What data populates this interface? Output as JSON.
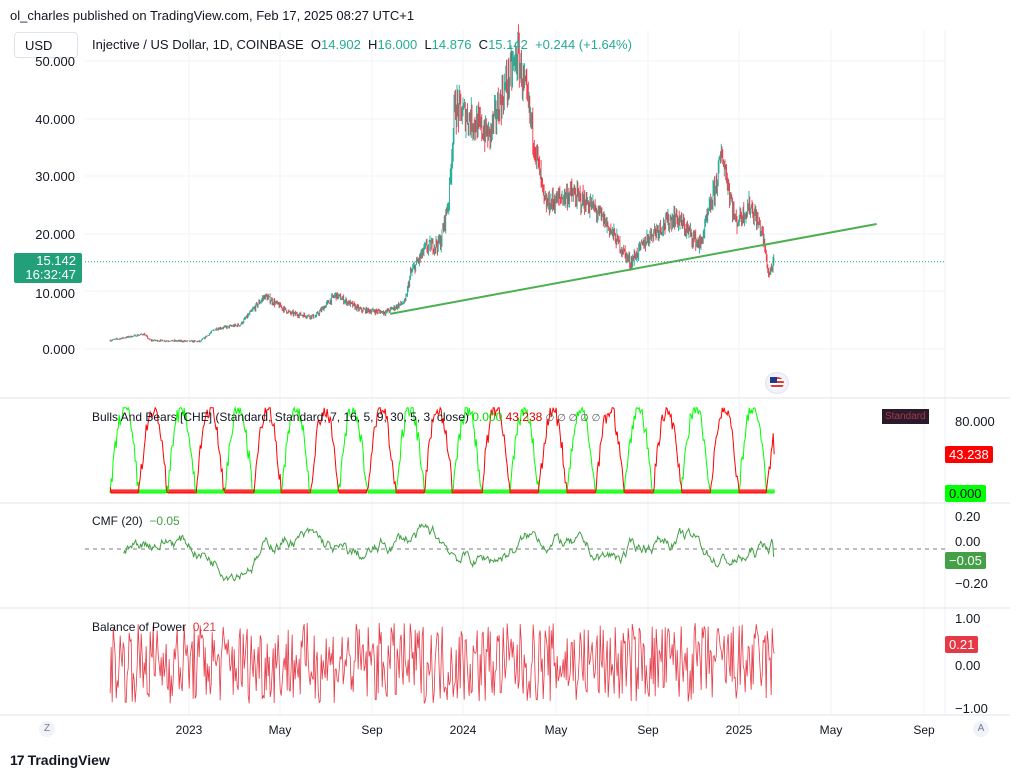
{
  "header": {
    "published": "ol_charles published on TradingView.com, Feb 17, 2025 08:27 UTC+1",
    "currency_button": "USD"
  },
  "legend": {
    "symbol": "Injective / US Dollar, 1D, COINBASE",
    "o_label": "O",
    "open": "14.902",
    "h_label": "H",
    "high": "16.000",
    "l_label": "L",
    "low": "14.876",
    "c_label": "C",
    "close": "15.142",
    "change": "+0.244 (+1.64%)"
  },
  "price_axis": {
    "labels": [
      "50.000",
      "40.000",
      "30.000",
      "20.000",
      "10.000",
      "0.000"
    ],
    "current_price": "15.142",
    "countdown": "16:32:47"
  },
  "indicators": {
    "bulls_bears": {
      "title": "Bulls And Bears [CHE] (Standard, Standard, 7, 16, 5, 9, 30, 5, 3, close)",
      "bull_value": "0.000",
      "bear_value": "43.238",
      "na_marks": [
        "∅",
        "∅",
        "∅",
        "∅",
        "∅"
      ],
      "tag": "Standard",
      "axis": [
        "80.000"
      ]
    },
    "cmf": {
      "title": "CMF (20)",
      "value": "−0.05",
      "axis": [
        "0.20",
        "0.00",
        "−0.20"
      ]
    },
    "bop": {
      "title": "Balance of Power",
      "value": "0.21",
      "axis": [
        "1.00",
        "0.00",
        "−1.00"
      ]
    }
  },
  "time_axis": {
    "labels": [
      "2023",
      "May",
      "Sep",
      "2024",
      "May",
      "Sep",
      "2025",
      "May",
      "Sep"
    ]
  },
  "buttons": {
    "z": "Z",
    "a": "A"
  },
  "footer": {
    "brand": "TradingView"
  },
  "colors": {
    "up": "#22ab94",
    "down": "#f23645",
    "trend": "#4caf50",
    "bull": "#00ff00",
    "bear": "#ff0000",
    "cmf": "#43a047",
    "bop": "#e53945"
  },
  "chart_data": {
    "type": "candlestick",
    "title": "Injective / US Dollar, 1D, COINBASE",
    "x_unit": "days since 2023-01-01",
    "ylim": [
      -8,
      55
    ],
    "price_path": [
      [
        -105,
        1.5
      ],
      [
        -60,
        2.6
      ],
      [
        -52,
        1.5
      ],
      [
        15,
        1.3
      ],
      [
        35,
        3.5
      ],
      [
        68,
        4.2
      ],
      [
        101,
        9.2
      ],
      [
        135,
        6.2
      ],
      [
        168,
        5.6
      ],
      [
        195,
        9.4
      ],
      [
        228,
        6.8
      ],
      [
        262,
        6.4
      ],
      [
        288,
        8.2
      ],
      [
        295,
        13
      ],
      [
        315,
        17.5
      ],
      [
        335,
        18.5
      ],
      [
        346,
        26
      ],
      [
        354,
        42
      ],
      [
        375,
        40
      ],
      [
        400,
        37
      ],
      [
        420,
        45
      ],
      [
        438,
        51
      ],
      [
        455,
        40
      ],
      [
        474,
        25
      ],
      [
        508,
        27
      ],
      [
        535,
        25
      ],
      [
        555,
        22
      ],
      [
        588,
        15
      ],
      [
        615,
        20
      ],
      [
        648,
        23
      ],
      [
        681,
        18
      ],
      [
        701,
        28
      ],
      [
        710,
        34
      ],
      [
        728,
        22
      ],
      [
        748,
        25
      ],
      [
        764,
        20
      ],
      [
        772,
        13
      ],
      [
        780,
        15.1
      ]
    ],
    "trendline": {
      "start": [
        268,
        6.1
      ],
      "end": [
        916,
        21.7
      ]
    },
    "current_price": 15.142
  }
}
